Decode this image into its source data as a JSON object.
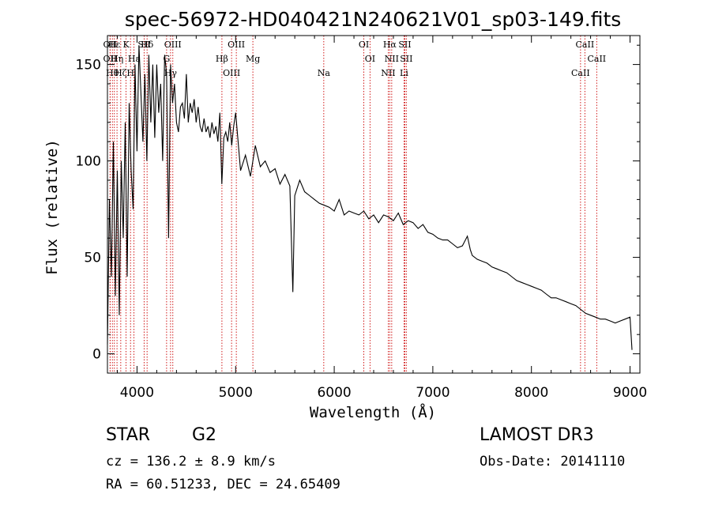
{
  "chart_data": {
    "type": "line",
    "title": "spec-56972-HD040421N240621V01_sp03-149.fits",
    "xlabel": "Wavelength (Å)",
    "ylabel": "Flux (relative)",
    "xlim": [
      3700,
      9100
    ],
    "ylim": [
      -10,
      165
    ],
    "xticks": [
      4000,
      5000,
      6000,
      7000,
      8000,
      9000
    ],
    "yticks": [
      0,
      50,
      100,
      150
    ],
    "series": [
      {
        "name": "flux",
        "x": [
          3700,
          3720,
          3740,
          3760,
          3780,
          3800,
          3820,
          3840,
          3860,
          3880,
          3900,
          3920,
          3940,
          3960,
          3980,
          4000,
          4020,
          4040,
          4060,
          4080,
          4100,
          4120,
          4140,
          4160,
          4180,
          4200,
          4220,
          4240,
          4260,
          4280,
          4300,
          4320,
          4340,
          4360,
          4380,
          4400,
          4420,
          4440,
          4460,
          4480,
          4500,
          4520,
          4540,
          4560,
          4580,
          4600,
          4620,
          4640,
          4660,
          4680,
          4700,
          4720,
          4740,
          4760,
          4780,
          4800,
          4820,
          4840,
          4860,
          4880,
          4900,
          4920,
          4940,
          4960,
          4980,
          5000,
          5050,
          5100,
          5150,
          5200,
          5250,
          5300,
          5350,
          5400,
          5450,
          5500,
          5550,
          5580,
          5600,
          5650,
          5700,
          5750,
          5800,
          5850,
          5900,
          5950,
          6000,
          6050,
          6100,
          6150,
          6200,
          6250,
          6300,
          6350,
          6400,
          6450,
          6500,
          6550,
          6600,
          6650,
          6700,
          6750,
          6800,
          6850,
          6900,
          6950,
          7000,
          7050,
          7100,
          7150,
          7200,
          7250,
          7300,
          7350,
          7380,
          7400,
          7450,
          7500,
          7550,
          7600,
          7650,
          7700,
          7750,
          7800,
          7850,
          7900,
          7950,
          8000,
          8050,
          8100,
          8150,
          8200,
          8250,
          8300,
          8350,
          8400,
          8450,
          8500,
          8550,
          8600,
          8650,
          8700,
          8750,
          8800,
          8850,
          8900,
          8950,
          9000,
          9020
        ],
        "y": [
          5,
          80,
          40,
          110,
          30,
          95,
          20,
          100,
          60,
          120,
          40,
          130,
          95,
          75,
          150,
          105,
          160,
          135,
          110,
          145,
          100,
          155,
          120,
          150,
          112,
          150,
          125,
          140,
          100,
          155,
          145,
          60,
          150,
          130,
          140,
          120,
          115,
          128,
          130,
          122,
          145,
          120,
          130,
          125,
          132,
          120,
          128,
          118,
          115,
          122,
          115,
          118,
          112,
          120,
          114,
          118,
          110,
          125,
          88,
          112,
          115,
          110,
          120,
          108,
          118,
          125,
          95,
          103,
          92,
          108,
          97,
          100,
          94,
          96,
          88,
          93,
          87,
          32,
          82,
          90,
          84,
          82,
          80,
          78,
          77,
          76,
          74,
          80,
          72,
          74,
          73,
          72,
          74,
          70,
          72,
          68,
          72,
          71,
          69,
          73,
          67,
          69,
          68,
          65,
          67,
          63,
          62,
          60,
          59,
          59,
          57,
          55,
          56,
          61,
          54,
          51,
          49,
          48,
          47,
          45,
          44,
          43,
          42,
          40,
          38,
          37,
          36,
          35,
          34,
          33,
          31,
          29,
          29,
          28,
          27,
          26,
          25,
          23,
          21,
          20,
          19,
          18,
          18,
          17,
          16,
          17,
          18,
          19,
          2
        ]
      }
    ],
    "lines": [
      {
        "name": "OII",
        "x": 3727,
        "row": 0
      },
      {
        "name": "OII",
        "x": 3727,
        "row": 1
      },
      {
        "name": "Hθ",
        "x": 3750,
        "row": 2
      },
      {
        "name": "Hε",
        "x": 3770,
        "row": 3
      },
      {
        "name": "Hη",
        "x": 3797,
        "row": 1
      },
      {
        "name": "Hζ",
        "x": 3835,
        "row": 2
      },
      {
        "name": "K",
        "x": 3889,
        "row": 3
      },
      {
        "name": "H",
        "x": 3934,
        "row": 2
      },
      {
        "name": "Hε",
        "x": 3969,
        "row": 1
      },
      {
        "name": "SII",
        "x": 4072,
        "row": 3
      },
      {
        "name": "Hδ",
        "x": 4102,
        "row": 3
      },
      {
        "name": "G",
        "x": 4300,
        "row": 1
      },
      {
        "name": "Hγ",
        "x": 4340,
        "row": 2
      },
      {
        "name": "OIII",
        "x": 4363,
        "row": 3
      },
      {
        "name": "Hβ",
        "x": 4861,
        "row": 1
      },
      {
        "name": "OIII",
        "x": 4959,
        "row": 2
      },
      {
        "name": "OIII",
        "x": 5007,
        "row": 3
      },
      {
        "name": "Mg",
        "x": 5175,
        "row": 1
      },
      {
        "name": "Na",
        "x": 5894,
        "row": 2
      },
      {
        "name": "OI",
        "x": 6300,
        "row": 3
      },
      {
        "name": "OI",
        "x": 6363,
        "row": 1
      },
      {
        "name": "NII",
        "x": 6548,
        "row": 2
      },
      {
        "name": "Hα",
        "x": 6563,
        "row": 3
      },
      {
        "name": "NII",
        "x": 6583,
        "row": 1
      },
      {
        "name": "Li",
        "x": 6708,
        "row": 2
      },
      {
        "name": "SII",
        "x": 6716,
        "row": 3
      },
      {
        "name": "SII",
        "x": 6731,
        "row": 1
      },
      {
        "name": "CaII",
        "x": 8498,
        "row": 2
      },
      {
        "name": "CaII",
        "x": 8542,
        "row": 3
      },
      {
        "name": "CaII",
        "x": 8662,
        "row": 1
      }
    ]
  },
  "info": {
    "object_type": "STAR",
    "subclass": "G2",
    "survey": "LAMOST DR3",
    "cz_text": "cz = 136.2 ± 8.9 km/s",
    "obs_date_text": "Obs-Date: 20141110",
    "radec_text": "RA =  60.51233, DEC =  24.65409"
  },
  "colors": {
    "line_marker": "#cc0000",
    "spectrum": "#000000",
    "axis": "#000000"
  }
}
